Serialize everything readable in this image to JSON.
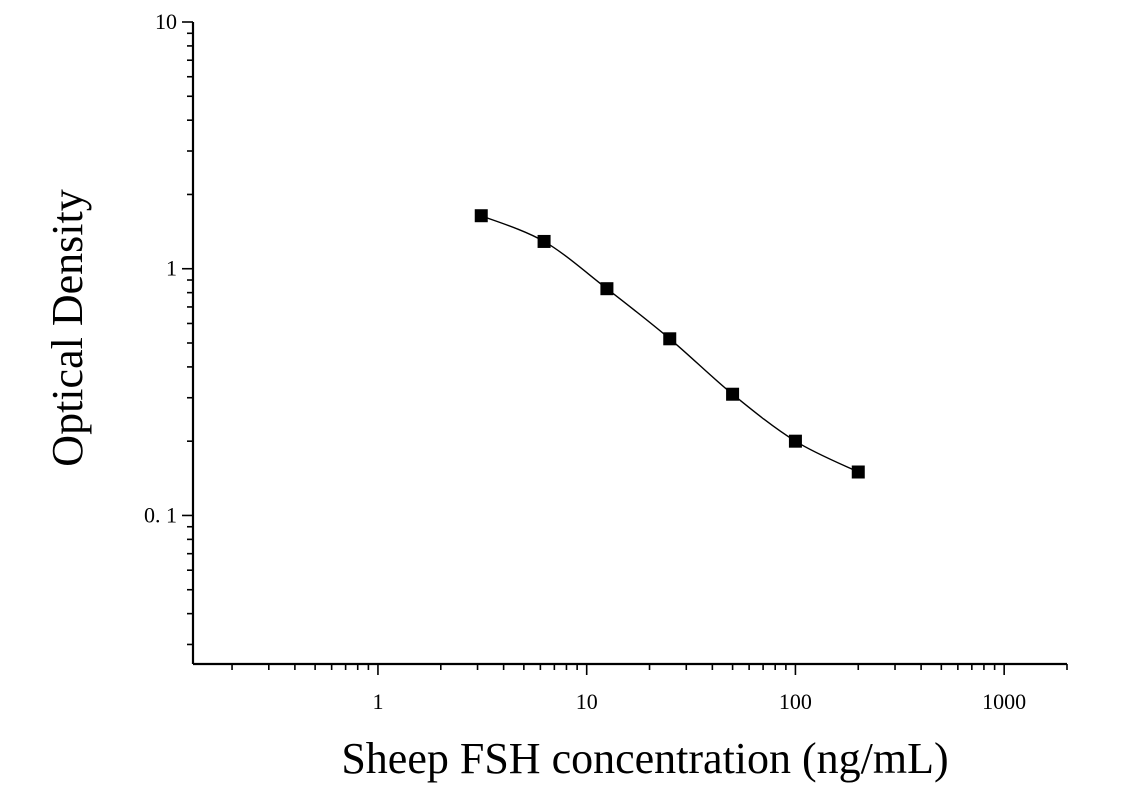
{
  "chart_data": {
    "type": "scatter",
    "xlabel": "Sheep FSH concentration (ng/mL)",
    "ylabel": "Optical Density",
    "xscale": "log",
    "yscale": "log",
    "xlim": [
      0.13,
      2000
    ],
    "ylim": [
      0.025,
      10
    ],
    "x_tick_labels": [
      "1",
      "10",
      "100",
      "1000"
    ],
    "x_tick_values": [
      1,
      10,
      100,
      1000
    ],
    "y_tick_labels": [
      "10",
      "1",
      "0. 1"
    ],
    "y_tick_values": [
      10,
      1,
      0.1
    ],
    "grid": false,
    "series": [
      {
        "x": [
          3.125,
          6.25,
          12.5,
          25,
          50,
          100,
          200
        ],
        "y": [
          1.64,
          1.29,
          0.83,
          0.52,
          0.31,
          0.2,
          0.15
        ],
        "marker": "square",
        "fit": "four-parameter logistic"
      }
    ],
    "colors": {
      "marker": "#000000",
      "curve": "#000000"
    }
  }
}
